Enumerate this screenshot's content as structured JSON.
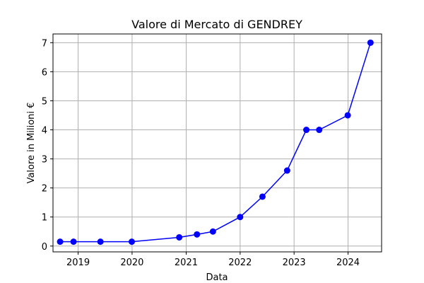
{
  "chart_data": {
    "type": "line",
    "title": "Valore di Mercato di GENDREY",
    "xlabel": "Data",
    "ylabel": "Valore in Milioni €",
    "x_axis": "date",
    "xlim": [
      "2018-07-15",
      "2024-08-15"
    ],
    "ylim": [
      -0.2,
      7.3
    ],
    "x_ticks": [
      "2019-01-01",
      "2020-01-01",
      "2021-01-01",
      "2022-01-01",
      "2023-01-01",
      "2024-01-01"
    ],
    "x_tick_labels": [
      "2019",
      "2020",
      "2021",
      "2022",
      "2023",
      "2024"
    ],
    "y_ticks": [
      0,
      1,
      2,
      3,
      4,
      5,
      6,
      7
    ],
    "y_tick_labels": [
      "0",
      "1",
      "2",
      "3",
      "4",
      "5",
      "6",
      "7"
    ],
    "grid": true,
    "legend": "none",
    "series": [
      {
        "color": "#0000ff",
        "marker": "circle",
        "points": [
          {
            "x": "2018-09-01",
            "y": 0.15
          },
          {
            "x": "2018-12-01",
            "y": 0.15
          },
          {
            "x": "2019-06-01",
            "y": 0.15
          },
          {
            "x": "2019-12-30",
            "y": 0.15
          },
          {
            "x": "2020-11-15",
            "y": 0.3
          },
          {
            "x": "2021-03-15",
            "y": 0.4
          },
          {
            "x": "2021-07-01",
            "y": 0.5
          },
          {
            "x": "2022-01-01",
            "y": 1.0
          },
          {
            "x": "2022-06-01",
            "y": 1.7
          },
          {
            "x": "2022-11-15",
            "y": 2.6
          },
          {
            "x": "2023-03-25",
            "y": 4.0
          },
          {
            "x": "2023-06-20",
            "y": 4.0
          },
          {
            "x": "2023-12-30",
            "y": 4.5
          },
          {
            "x": "2024-06-01",
            "y": 7.0
          }
        ]
      }
    ]
  }
}
